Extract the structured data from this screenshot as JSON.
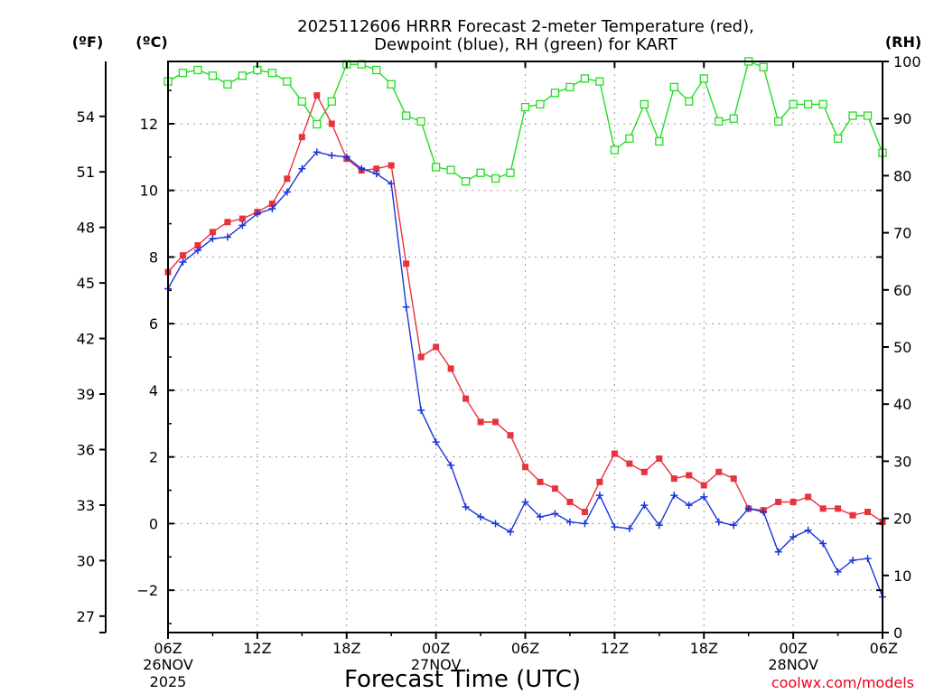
{
  "chart_data": {
    "type": "line",
    "title_lines": [
      "2025112606 HRRR Forecast 2-meter Temperature (red),",
      "Dewpoint (blue), RH (green) for KART"
    ],
    "xlabel": "Forecast Time (UTC)",
    "credit": "coolwx.com/models",
    "units": {
      "fahrenheit": "(ºF)",
      "celsius": "(ºC)",
      "rh": "(RH)"
    },
    "x_range": [
      0,
      48
    ],
    "celsius_range": [
      -3.27,
      13.87
    ],
    "rh_range": [
      0,
      100
    ],
    "x_ticks": [
      {
        "x": 0,
        "label": "06Z"
      },
      {
        "x": 6,
        "label": "12Z"
      },
      {
        "x": 12,
        "label": "18Z"
      },
      {
        "x": 18,
        "label": "00Z"
      },
      {
        "x": 24,
        "label": "06Z"
      },
      {
        "x": 30,
        "label": "12Z"
      },
      {
        "x": 36,
        "label": "18Z"
      },
      {
        "x": 42,
        "label": "00Z"
      },
      {
        "x": 48,
        "label": "06Z"
      }
    ],
    "date_labels": [
      {
        "x": 0,
        "lines": [
          "26NOV",
          "2025"
        ]
      },
      {
        "x": 18,
        "lines": [
          "27NOV"
        ]
      },
      {
        "x": 42,
        "lines": [
          "28NOV"
        ]
      }
    ],
    "celsius_ticks": [
      -2,
      0,
      2,
      4,
      6,
      8,
      10,
      12
    ],
    "fahrenheit_ticks": [
      27,
      30,
      33,
      36,
      39,
      42,
      45,
      48,
      51,
      54
    ],
    "rh_ticks": [
      0,
      10,
      20,
      30,
      40,
      50,
      60,
      70,
      80,
      90,
      100
    ],
    "series": [
      {
        "name": "Temperature",
        "color": "#e8323c",
        "axis": "celsius",
        "values": [
          7.55,
          8.05,
          8.35,
          8.75,
          9.05,
          9.15,
          9.35,
          9.6,
          10.35,
          11.6,
          12.85,
          12.0,
          10.95,
          10.6,
          10.65,
          10.75,
          7.8,
          5.0,
          5.3,
          4.65,
          3.75,
          3.05,
          3.05,
          2.65,
          1.7,
          1.25,
          1.05,
          0.65,
          0.35,
          1.25,
          2.1,
          1.8,
          1.55,
          1.95,
          1.35,
          1.45,
          1.15,
          1.55,
          1.35,
          0.45,
          0.4,
          0.65,
          0.65,
          0.8,
          0.45,
          0.45,
          0.25,
          0.35,
          0.05
        ]
      },
      {
        "name": "Dewpoint",
        "color": "#1a35dc",
        "axis": "celsius",
        "values": [
          7.05,
          7.85,
          8.2,
          8.55,
          8.6,
          8.95,
          9.3,
          9.45,
          9.95,
          10.65,
          11.15,
          11.05,
          11.0,
          10.65,
          10.5,
          10.2,
          6.5,
          3.4,
          2.45,
          1.75,
          0.5,
          0.2,
          0.0,
          -0.25,
          0.65,
          0.2,
          0.3,
          0.05,
          0.0,
          0.85,
          -0.1,
          -0.15,
          0.55,
          -0.05,
          0.85,
          0.55,
          0.8,
          0.05,
          -0.05,
          0.45,
          0.35,
          -0.85,
          -0.4,
          -0.2,
          -0.6,
          -1.45,
          -1.1,
          -1.05,
          -2.2
        ]
      },
      {
        "name": "RH",
        "color": "#22dd22",
        "axis": "rh",
        "values": [
          96.5,
          98.0,
          98.5,
          97.5,
          96.0,
          97.5,
          98.5,
          98.0,
          96.5,
          93.0,
          89.0,
          93.0,
          99.5,
          99.5,
          98.5,
          96.0,
          90.5,
          89.5,
          81.5,
          81.0,
          79.0,
          80.5,
          79.5,
          80.5,
          92.0,
          92.5,
          94.5,
          95.5,
          97.0,
          96.5,
          84.5,
          86.5,
          92.5,
          86.0,
          95.5,
          93.0,
          97.0,
          89.5,
          90.0,
          100.0,
          99.0,
          89.5,
          92.5,
          92.5,
          92.5,
          86.5,
          90.5,
          90.5,
          84.0
        ]
      }
    ]
  }
}
